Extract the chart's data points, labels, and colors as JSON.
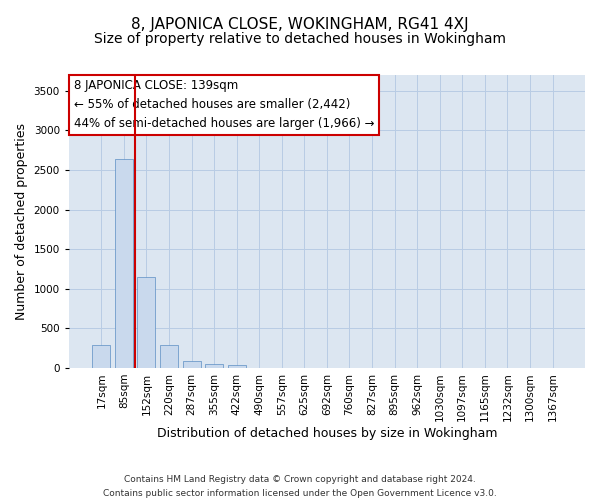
{
  "title": "8, JAPONICA CLOSE, WOKINGHAM, RG41 4XJ",
  "subtitle": "Size of property relative to detached houses in Wokingham",
  "xlabel": "Distribution of detached houses by size in Wokingham",
  "ylabel": "Number of detached properties",
  "footer_line1": "Contains HM Land Registry data © Crown copyright and database right 2024.",
  "footer_line2": "Contains public sector information licensed under the Open Government Licence v3.0.",
  "bar_labels": [
    "17sqm",
    "85sqm",
    "152sqm",
    "220sqm",
    "287sqm",
    "355sqm",
    "422sqm",
    "490sqm",
    "557sqm",
    "625sqm",
    "692sqm",
    "760sqm",
    "827sqm",
    "895sqm",
    "962sqm",
    "1030sqm",
    "1097sqm",
    "1165sqm",
    "1232sqm",
    "1300sqm",
    "1367sqm"
  ],
  "bar_values": [
    285,
    2640,
    1150,
    285,
    90,
    50,
    35,
    0,
    0,
    0,
    0,
    0,
    0,
    0,
    0,
    0,
    0,
    0,
    0,
    0,
    0
  ],
  "bar_color": "#c9d9ed",
  "bar_edgecolor": "#5b8ec4",
  "vline_x": 1.5,
  "vline_color": "#cc0000",
  "annotation_text": "8 JAPONICA CLOSE: 139sqm\n← 55% of detached houses are smaller (2,442)\n44% of semi-detached houses are larger (1,966) →",
  "annotation_box_facecolor": "white",
  "annotation_box_edgecolor": "#cc0000",
  "ylim": [
    0,
    3700
  ],
  "yticks": [
    0,
    500,
    1000,
    1500,
    2000,
    2500,
    3000,
    3500
  ],
  "grid_color": "#b8cce4",
  "bg_color": "#dce6f1",
  "title_fontsize": 11,
  "subtitle_fontsize": 10,
  "xlabel_fontsize": 9,
  "ylabel_fontsize": 9,
  "tick_fontsize": 7.5,
  "annotation_fontsize": 8.5,
  "footer_fontsize": 6.5
}
